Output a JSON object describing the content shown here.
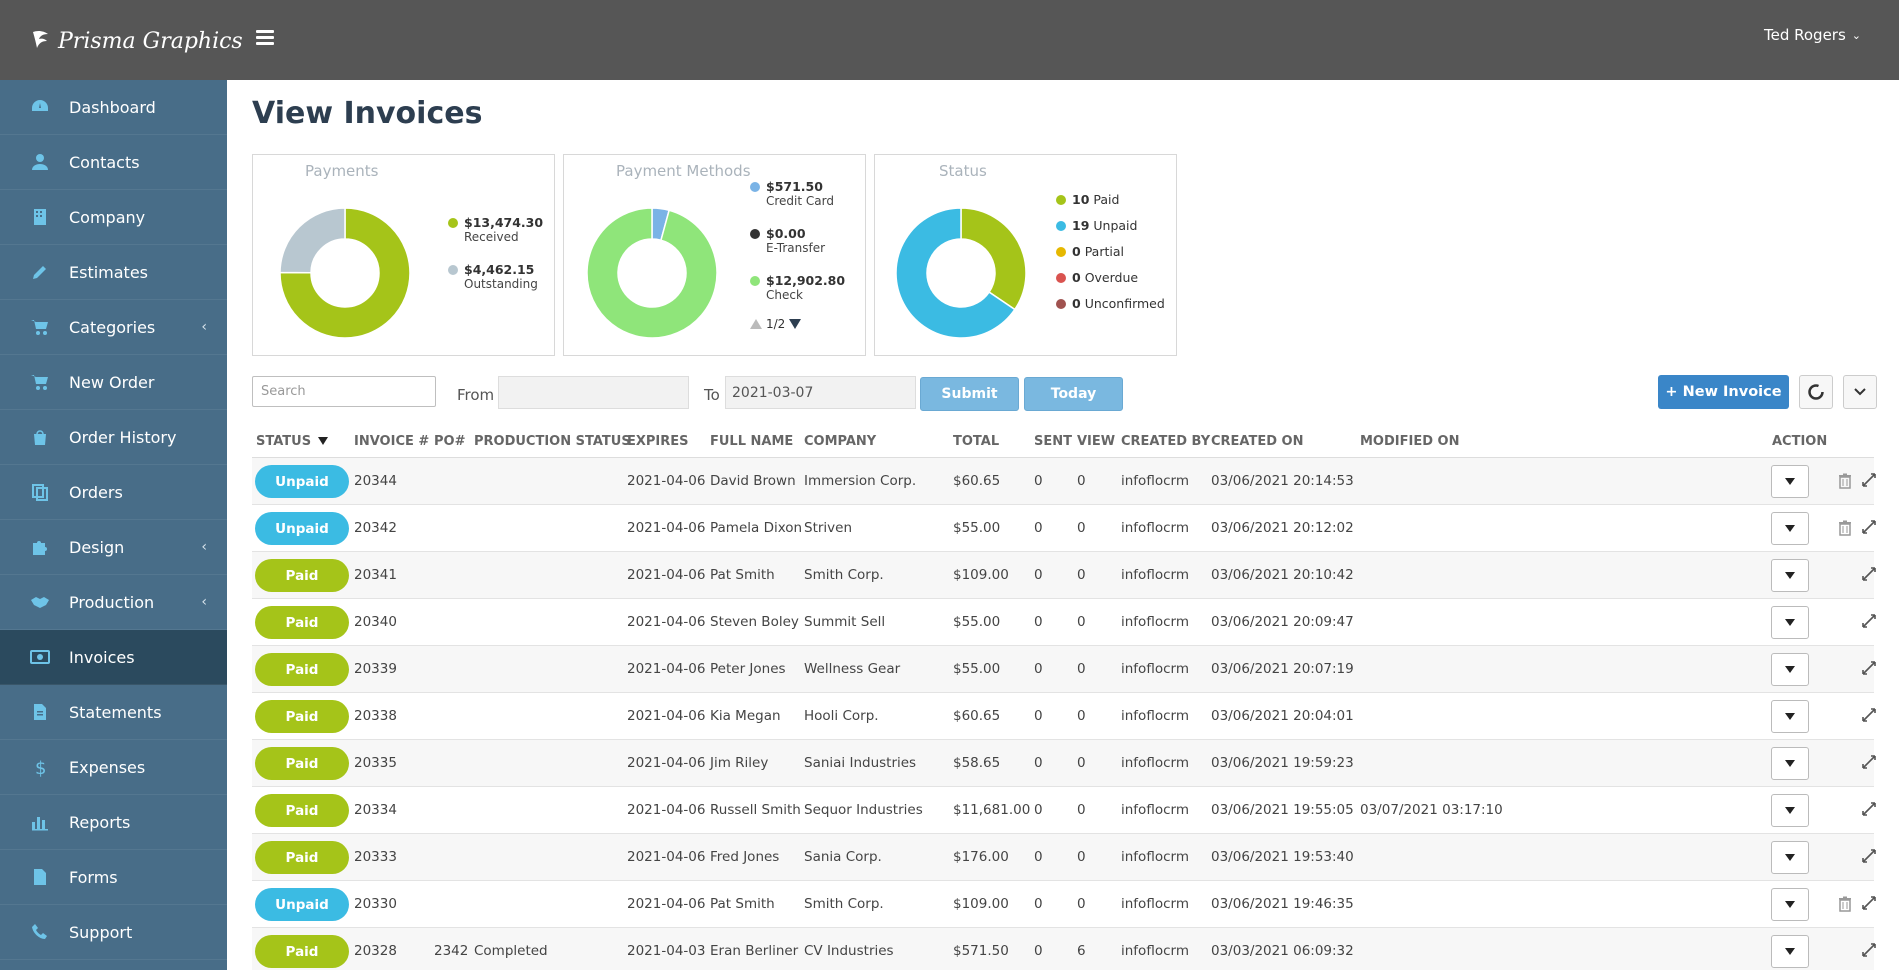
{
  "brand": {
    "name": "Prisma Graphics"
  },
  "header": {
    "user_name": "Ted Rogers",
    "user_chevron": "⌄"
  },
  "colors": {
    "topbar": "#565656",
    "sidebar": "#486d88",
    "sidebar_active": "#2b4a5e",
    "icon": "#6ec4e8",
    "paid": "#a5c419",
    "unpaid": "#3bbbe3",
    "primary": "#3a86c8",
    "light_button": "#7ab8e0"
  },
  "sidebar": {
    "items": [
      {
        "label": "Dashboard",
        "icon": "dashboard-icon",
        "caret": ""
      },
      {
        "label": "Contacts",
        "icon": "user-icon",
        "caret": ""
      },
      {
        "label": "Company",
        "icon": "building-icon",
        "caret": ""
      },
      {
        "label": "Estimates",
        "icon": "pencil-icon",
        "caret": ""
      },
      {
        "label": "Categories",
        "icon": "cart-icon",
        "caret": "‹"
      },
      {
        "label": "New Order",
        "icon": "cart-icon",
        "caret": ""
      },
      {
        "label": "Order History",
        "icon": "shopping-bag-icon",
        "caret": ""
      },
      {
        "label": "Orders",
        "icon": "copy-icon",
        "caret": ""
      },
      {
        "label": "Design",
        "icon": "puzzle-icon",
        "caret": "‹"
      },
      {
        "label": "Production",
        "icon": "handshake-icon",
        "caret": "‹"
      },
      {
        "label": "Invoices",
        "icon": "money-icon",
        "caret": ""
      },
      {
        "label": "Statements",
        "icon": "file-text-icon",
        "caret": ""
      },
      {
        "label": "Expenses",
        "icon": "dollar-icon",
        "caret": ""
      },
      {
        "label": "Reports",
        "icon": "bar-chart-icon",
        "caret": ""
      },
      {
        "label": "Forms",
        "icon": "file-icon",
        "caret": ""
      },
      {
        "label": "Support",
        "icon": "phone-icon",
        "caret": ""
      }
    ],
    "active": "Invoices"
  },
  "page": {
    "title": "View Invoices"
  },
  "cards": {
    "payments": {
      "title": "Payments",
      "legend": [
        {
          "value": "$13,474.30",
          "label": "Received",
          "color": "#a5c419"
        },
        {
          "value": "$4,462.15",
          "label": "Outstanding",
          "color": "#b8c7d0"
        }
      ]
    },
    "methods": {
      "title": "Payment Methods",
      "legend": [
        {
          "value": "$571.50",
          "label": "Credit Card",
          "color": "#7ab3e6"
        },
        {
          "value": "$0.00",
          "label": "E-Transfer",
          "color": "#333333"
        },
        {
          "value": "$12,902.80",
          "label": "Check",
          "color": "#8fe57a"
        }
      ],
      "pager": "1/2"
    },
    "status": {
      "title": "Status",
      "legend": [
        {
          "value": "10",
          "label": "Paid",
          "color": "#a5c419"
        },
        {
          "value": "19",
          "label": "Unpaid",
          "color": "#3bbbe3"
        },
        {
          "value": "0",
          "label": "Partial",
          "color": "#e6b800"
        },
        {
          "value": "0",
          "label": "Overdue",
          "color": "#d9534f"
        },
        {
          "value": "0",
          "label": "Unconfirmed",
          "color": "#a0524f"
        }
      ]
    }
  },
  "chart_data": [
    {
      "type": "pie",
      "title": "Payments",
      "labels": [
        "Received",
        "Outstanding"
      ],
      "values": [
        13474.3,
        4462.15
      ],
      "colors": [
        "#a5c419",
        "#b8c7d0"
      ]
    },
    {
      "type": "pie",
      "title": "Payment Methods",
      "labels": [
        "Credit Card",
        "E-Transfer",
        "Check"
      ],
      "values": [
        571.5,
        0.0,
        12902.8
      ],
      "colors": [
        "#7ab3e6",
        "#333333",
        "#8fe57a"
      ]
    },
    {
      "type": "pie",
      "title": "Status",
      "labels": [
        "Paid",
        "Unpaid",
        "Partial",
        "Overdue",
        "Unconfirmed"
      ],
      "values": [
        10,
        19,
        0,
        0,
        0
      ],
      "colors": [
        "#a5c419",
        "#3bbbe3",
        "#e6b800",
        "#d9534f",
        "#a0524f"
      ]
    }
  ],
  "toolbar": {
    "search_placeholder": "Search",
    "from_label": "From",
    "from_value": "",
    "to_label": "To",
    "to_value": "2021-03-07",
    "submit_label": "Submit",
    "today_label": "Today",
    "new_invoice_label": "+ New Invoice"
  },
  "table": {
    "headers": {
      "status": "STATUS",
      "invoice": "INVOICE #",
      "po": "PO#",
      "production": "PRODUCTION STATUS",
      "expires": "EXPIRES",
      "full_name": "FULL NAME",
      "company": "COMPANY",
      "total": "TOTAL",
      "sent": "SENT",
      "view": "VIEW",
      "created_by": "CREATED BY",
      "created_on": "CREATED ON",
      "modified_on": "MODIFIED ON",
      "action": "ACTION"
    },
    "rows": [
      {
        "status": "Unpaid",
        "invoice": "20344",
        "po": "",
        "production": "",
        "expires": "2021-04-06",
        "full_name": "David Brown",
        "company": "Immersion Corp.",
        "total": "$60.65",
        "sent": "0",
        "view": "0",
        "created_by": "infoflocrm",
        "created_on": "03/06/2021 20:14:53",
        "modified_on": "",
        "trash": true
      },
      {
        "status": "Unpaid",
        "invoice": "20342",
        "po": "",
        "production": "",
        "expires": "2021-04-06",
        "full_name": "Pamela Dixon",
        "company": "Striven",
        "total": "$55.00",
        "sent": "0",
        "view": "0",
        "created_by": "infoflocrm",
        "created_on": "03/06/2021 20:12:02",
        "modified_on": "",
        "trash": true
      },
      {
        "status": "Paid",
        "invoice": "20341",
        "po": "",
        "production": "",
        "expires": "2021-04-06",
        "full_name": "Pat Smith",
        "company": "Smith Corp.",
        "total": "$109.00",
        "sent": "0",
        "view": "0",
        "created_by": "infoflocrm",
        "created_on": "03/06/2021 20:10:42",
        "modified_on": "",
        "trash": false
      },
      {
        "status": "Paid",
        "invoice": "20340",
        "po": "",
        "production": "",
        "expires": "2021-04-06",
        "full_name": "Steven Boley",
        "company": "Summit Sell",
        "total": "$55.00",
        "sent": "0",
        "view": "0",
        "created_by": "infoflocrm",
        "created_on": "03/06/2021 20:09:47",
        "modified_on": "",
        "trash": false
      },
      {
        "status": "Paid",
        "invoice": "20339",
        "po": "",
        "production": "",
        "expires": "2021-04-06",
        "full_name": "Peter Jones",
        "company": "Wellness Gear",
        "total": "$55.00",
        "sent": "0",
        "view": "0",
        "created_by": "infoflocrm",
        "created_on": "03/06/2021 20:07:19",
        "modified_on": "",
        "trash": false
      },
      {
        "status": "Paid",
        "invoice": "20338",
        "po": "",
        "production": "",
        "expires": "2021-04-06",
        "full_name": "Kia Megan",
        "company": "Hooli Corp.",
        "total": "$60.65",
        "sent": "0",
        "view": "0",
        "created_by": "infoflocrm",
        "created_on": "03/06/2021 20:04:01",
        "modified_on": "",
        "trash": false
      },
      {
        "status": "Paid",
        "invoice": "20335",
        "po": "",
        "production": "",
        "expires": "2021-04-06",
        "full_name": "Jim Riley",
        "company": "Saniai Industries",
        "total": "$58.65",
        "sent": "0",
        "view": "0",
        "created_by": "infoflocrm",
        "created_on": "03/06/2021 19:59:23",
        "modified_on": "",
        "trash": false
      },
      {
        "status": "Paid",
        "invoice": "20334",
        "po": "",
        "production": "",
        "expires": "2021-04-06",
        "full_name": "Russell Smith",
        "company": "Sequor Industries",
        "total": "$11,681.00",
        "sent": "0",
        "view": "0",
        "created_by": "infoflocrm",
        "created_on": "03/06/2021 19:55:05",
        "modified_on": "03/07/2021 03:17:10",
        "trash": false
      },
      {
        "status": "Paid",
        "invoice": "20333",
        "po": "",
        "production": "",
        "expires": "2021-04-06",
        "full_name": "Fred Jones",
        "company": "Sania Corp.",
        "total": "$176.00",
        "sent": "0",
        "view": "0",
        "created_by": "infoflocrm",
        "created_on": "03/06/2021 19:53:40",
        "modified_on": "",
        "trash": false
      },
      {
        "status": "Unpaid",
        "invoice": "20330",
        "po": "",
        "production": "",
        "expires": "2021-04-06",
        "full_name": "Pat Smith",
        "company": "Smith Corp.",
        "total": "$109.00",
        "sent": "0",
        "view": "0",
        "created_by": "infoflocrm",
        "created_on": "03/06/2021 19:46:35",
        "modified_on": "",
        "trash": true
      },
      {
        "status": "Paid",
        "invoice": "20328",
        "po": "2342",
        "production": "Completed",
        "expires": "2021-04-03",
        "full_name": "Eran Berliner",
        "company": "CV Industries",
        "total": "$571.50",
        "sent": "0",
        "view": "6",
        "created_by": "infoflocrm",
        "created_on": "03/03/2021 06:09:32",
        "modified_on": "",
        "trash": false
      }
    ]
  }
}
